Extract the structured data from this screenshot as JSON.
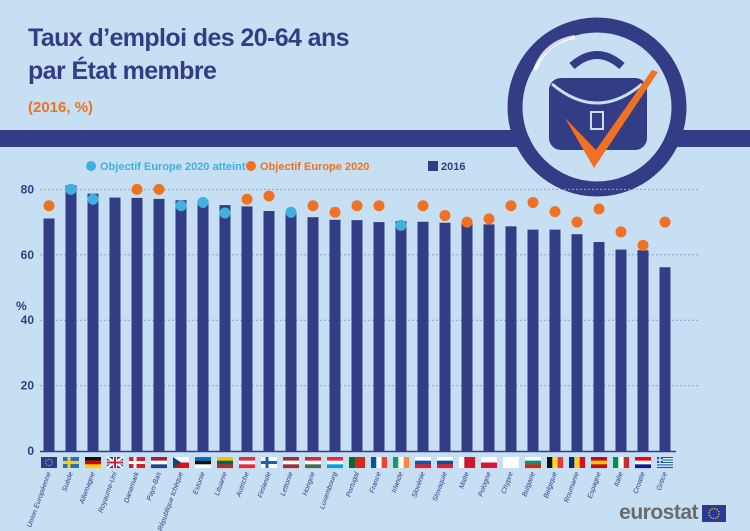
{
  "header": {
    "title_line1": "Taux d’emploi des 20-64 ans",
    "title_line2": "par État membre",
    "subtitle": "(2016, %)"
  },
  "logo": {
    "text": "eurostat",
    "icon": "eu-flag-icon"
  },
  "colors": {
    "bar": "#323d85",
    "target": "#f07122",
    "attained": "#3fb0e0",
    "background": "#c6dff3"
  },
  "chart_data": {
    "type": "bar",
    "title": "Taux d’emploi des 20-64 ans par État membre",
    "subtitle": "(2016, %)",
    "ylabel": "%",
    "ylim": [
      0,
      85
    ],
    "yticks": [
      0,
      20,
      40,
      60,
      80
    ],
    "grid": true,
    "legend": {
      "placement": "top",
      "entries": [
        "Objectif Europe 2020 atteint",
        "Objectif Europe 2020",
        "2016"
      ]
    },
    "categories": [
      "Union Européenne",
      "Suède",
      "Allemagne",
      "Royaume-Uni",
      "Danemark",
      "Pays-Bas",
      "République tchèque",
      "Estonie",
      "Lituanie",
      "Autriche",
      "Finlande",
      "Lettonie",
      "Hongrie",
      "Luxembourg",
      "Portugal",
      "France",
      "Irlande",
      "Slovénie",
      "Slovaquie",
      "Malte",
      "Pologne",
      "Chypre",
      "Bulgarie",
      "Belgique",
      "Roumanie",
      "Espagne",
      "Italie",
      "Croatie",
      "Grèce"
    ],
    "series": [
      {
        "name": "2016",
        "type": "bar",
        "values": [
          71.1,
          81.2,
          78.7,
          77.5,
          77.4,
          77.1,
          76.7,
          76.6,
          75.2,
          74.8,
          73.4,
          73.2,
          71.5,
          70.7,
          70.6,
          70.0,
          70.3,
          70.1,
          69.8,
          69.6,
          69.3,
          68.7,
          67.7,
          67.7,
          66.3,
          63.9,
          61.6,
          61.4,
          56.2
        ]
      },
      {
        "name": "Objectif Europe 2020",
        "type": "scatter",
        "values": [
          75,
          80,
          77,
          null,
          80,
          80,
          75,
          76,
          72.8,
          77,
          78,
          73,
          75,
          73,
          75,
          75,
          69,
          75,
          72,
          70,
          71,
          75,
          76,
          73.2,
          70,
          74,
          67,
          62.9,
          70
        ]
      },
      {
        "name": "Objectif Europe 2020 atteint",
        "type": "scatter",
        "attained": [
          false,
          true,
          true,
          false,
          false,
          false,
          true,
          true,
          true,
          false,
          false,
          true,
          false,
          false,
          false,
          false,
          true,
          false,
          false,
          false,
          false,
          false,
          false,
          false,
          false,
          false,
          false,
          false,
          false
        ]
      }
    ],
    "flags": [
      {
        "dir": "eu",
        "c": [
          "#2a3a94",
          "#f5d000"
        ]
      },
      {
        "dir": "nordic",
        "c": [
          "#2f6fb8",
          "#f7d117"
        ]
      },
      {
        "dir": "h",
        "c": [
          "#111111",
          "#dd0000",
          "#ffce00"
        ]
      },
      {
        "dir": "uk",
        "c": [
          "#2b3f8f",
          "#ffffff",
          "#d0202e"
        ]
      },
      {
        "dir": "nordic",
        "c": [
          "#d0202e",
          "#ffffff"
        ]
      },
      {
        "dir": "h",
        "c": [
          "#ae1c28",
          "#ffffff",
          "#21468b"
        ]
      },
      {
        "dir": "cz",
        "c": [
          "#ffffff",
          "#d7141a",
          "#11457e"
        ]
      },
      {
        "dir": "h",
        "c": [
          "#0072ce",
          "#111111",
          "#ffffff"
        ]
      },
      {
        "dir": "h",
        "c": [
          "#fdb913",
          "#006a44",
          "#c1272d"
        ]
      },
      {
        "dir": "h",
        "c": [
          "#ed2939",
          "#ffffff",
          "#ed2939"
        ]
      },
      {
        "dir": "nordic",
        "c": [
          "#ffffff",
          "#1a5fb4"
        ]
      },
      {
        "dir": "h",
        "c": [
          "#9e3039",
          "#ffffff",
          "#9e3039"
        ]
      },
      {
        "dir": "h",
        "c": [
          "#ce2939",
          "#ffffff",
          "#477050"
        ]
      },
      {
        "dir": "h",
        "c": [
          "#ed2939",
          "#ffffff",
          "#00a1de"
        ]
      },
      {
        "dir": "v2",
        "c": [
          "#046a38",
          "#da291c"
        ]
      },
      {
        "dir": "v",
        "c": [
          "#0055a4",
          "#ffffff",
          "#ef4135"
        ]
      },
      {
        "dir": "v",
        "c": [
          "#169b62",
          "#ffffff",
          "#ff883e"
        ]
      },
      {
        "dir": "h",
        "c": [
          "#ffffff",
          "#0057b8",
          "#ed1c24"
        ]
      },
      {
        "dir": "h",
        "c": [
          "#ffffff",
          "#0b4ea2",
          "#ee1c25"
        ]
      },
      {
        "dir": "v",
        "c": [
          "#ffffff",
          "#cf142b",
          "#cf142b"
        ]
      },
      {
        "dir": "h2",
        "c": [
          "#ffffff",
          "#dc143c"
        ]
      },
      {
        "dir": "h",
        "c": [
          "#ffffff",
          "#ffffff",
          "#ffffff"
        ]
      },
      {
        "dir": "h",
        "c": [
          "#ffffff",
          "#00966e",
          "#d62612"
        ]
      },
      {
        "dir": "v",
        "c": [
          "#111111",
          "#fdda24",
          "#ef3340"
        ]
      },
      {
        "dir": "v",
        "c": [
          "#002b7f",
          "#fcd116",
          "#ce1126"
        ]
      },
      {
        "dir": "h",
        "c": [
          "#c60b1e",
          "#ffc400",
          "#c60b1e"
        ]
      },
      {
        "dir": "v",
        "c": [
          "#009246",
          "#ffffff",
          "#ce2b37"
        ]
      },
      {
        "dir": "h",
        "c": [
          "#ff0000",
          "#ffffff",
          "#171796"
        ]
      },
      {
        "dir": "gr",
        "c": [
          "#0d5eaf",
          "#ffffff"
        ]
      }
    ]
  }
}
